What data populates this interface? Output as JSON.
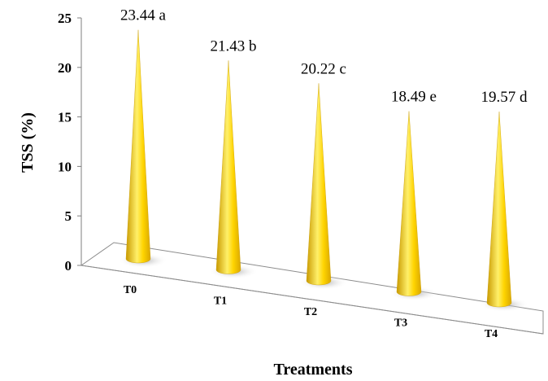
{
  "chart_data": {
    "type": "bar",
    "style": "3d-cone",
    "categories": [
      "T0",
      "T1",
      "T2",
      "T3",
      "T4"
    ],
    "values": [
      23.44,
      21.43,
      20.22,
      18.49,
      19.57
    ],
    "data_labels": [
      "23.44 a",
      "21.43 b",
      "20.22 c",
      "18.49 e",
      "19.57 d"
    ],
    "title": "",
    "xlabel": "Treatments",
    "ylabel": "TSS (%)",
    "ylim": [
      0,
      25
    ],
    "yticks": [
      0,
      5,
      10,
      15,
      20,
      25
    ],
    "grid": false,
    "legend": "none",
    "colors": {
      "cone_light": "#FFF06A",
      "cone_mid": "#FFD400",
      "cone_dark": "#C99A00",
      "floor": "#ffffff",
      "axis": "#7f7f7f"
    }
  }
}
